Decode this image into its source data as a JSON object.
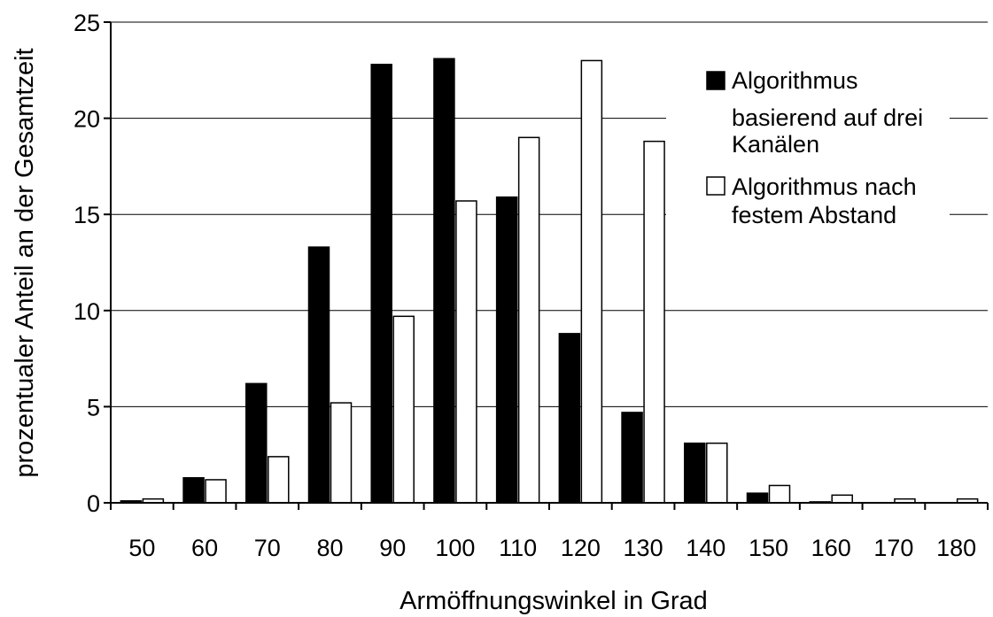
{
  "chart_data": {
    "type": "bar",
    "xlabel": "Armöffnungswinkel in Grad",
    "ylabel": "prozentualer Anteil an der Gesamtzeit",
    "categories": [
      "50",
      "60",
      "70",
      "80",
      "90",
      "100",
      "110",
      "120",
      "130",
      "140",
      "150",
      "160",
      "170",
      "180"
    ],
    "series": [
      {
        "name": "Algorithmus basierend auf drei Kanälen",
        "name_lines": [
          "Algorithmus",
          "basierend auf drei",
          "Kanälen"
        ],
        "color": "#000000",
        "values": [
          0.1,
          1.3,
          6.2,
          13.3,
          22.8,
          23.1,
          15.9,
          8.8,
          4.7,
          3.1,
          0.5,
          0.05,
          0.0,
          0.0
        ]
      },
      {
        "name": "Algorithmus nach festem Abstand",
        "name_lines": [
          "Algorithmus nach",
          "festem Abstand"
        ],
        "color": "#ffffff",
        "values": [
          0.2,
          1.2,
          2.4,
          5.2,
          9.7,
          15.7,
          19.0,
          23.0,
          18.8,
          3.1,
          0.9,
          0.4,
          0.2,
          0.2
        ]
      }
    ],
    "ylim": [
      0,
      25
    ],
    "yticks": [
      "0",
      "5",
      "10",
      "15",
      "20",
      "25"
    ],
    "grid": true,
    "legend_position": "top-right"
  }
}
